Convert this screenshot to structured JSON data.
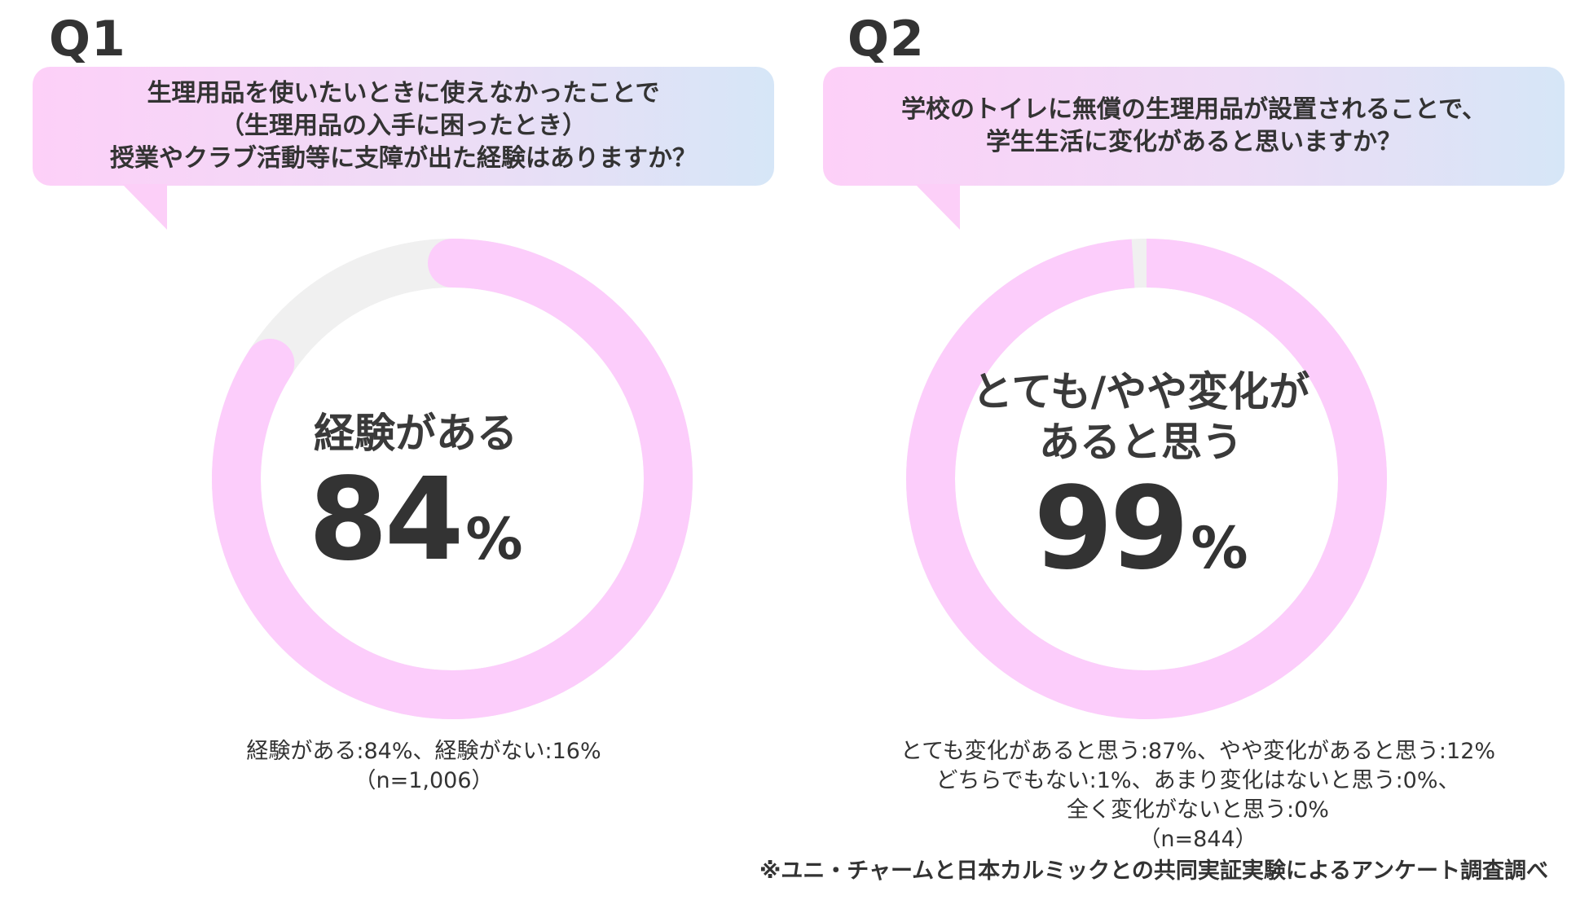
{
  "q1": {
    "label": "Q1",
    "question_lines": [
      "生理用品を使いたいときに使えなかったことで",
      "（生理用品の入手に困ったとき）",
      "授業やクラブ活動等に支障が出た経験はありますか？"
    ],
    "center_caption": "経験がある",
    "center_value": "84",
    "center_unit": "%",
    "breakdown_lines": [
      "経験がある:84%、経験がない:16%",
      "（n=1,006）"
    ]
  },
  "q2": {
    "label": "Q2",
    "question_lines": [
      "学校のトイレに無償の生理用品が設置されることで、",
      "学生生活に変化があると思いますか？"
    ],
    "center_caption_lines": [
      "とても/やや変化が",
      "あると思う"
    ],
    "center_value": "99",
    "center_unit": "%",
    "breakdown_lines": [
      "とても変化があると思う:87%、やや変化があると思う:12%",
      "どちらでもない:1%、あまり変化はないと思う:0%、",
      "全く変化がないと思う:0%",
      "（n=844）"
    ]
  },
  "source_note": "※ユニ・チャームと日本カルミックとの共同実証実験によるアンケート調査調べ",
  "colors": {
    "highlight": "#fccdfb",
    "remainder": "#f0f0f0",
    "text": "#333333"
  },
  "chart_data": [
    {
      "type": "pie",
      "title": "Q1",
      "categories": [
        "経験がある",
        "経験がない"
      ],
      "values": [
        84,
        16
      ],
      "unit": "%",
      "n": "1,006"
    },
    {
      "type": "pie",
      "title": "Q2",
      "categories": [
        "とても変化があると思う",
        "やや変化があると思う",
        "どちらでもない",
        "あまり変化はないと思う",
        "全く変化がないと思う"
      ],
      "values": [
        87,
        12,
        1,
        0,
        0
      ],
      "unit": "%",
      "n": "844"
    }
  ]
}
